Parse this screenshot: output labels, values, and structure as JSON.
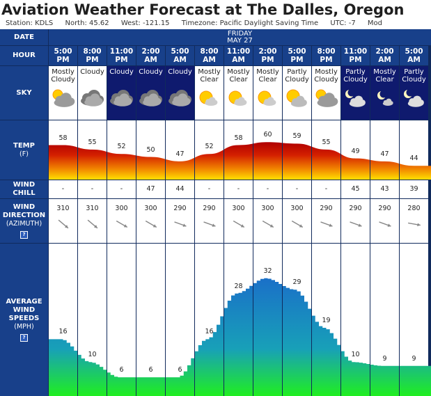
{
  "header": {
    "title": "Aviation Weather Forecast at The Dalles, Oregon",
    "station": "Station: KDLS",
    "north": "North: 45.62",
    "west": "West: -121.15",
    "timezone": "Timezone: Pacific Daylight Saving Time",
    "utc": "UTC: -7",
    "extra": "Mod"
  },
  "labels": {
    "date": "DATE",
    "hour": "HOUR",
    "sky": "SKY",
    "temp": "TEMP",
    "temp_unit": "(F)",
    "wind_chill_1": "WIND",
    "wind_chill_2": "CHILL",
    "wind_dir_1": "WIND",
    "wind_dir_2": "DIRECTION",
    "wind_dir_3": "(AZIMUTH)",
    "wind_speed_1": "AVERAGE",
    "wind_speed_2": "WIND",
    "wind_speed_3": "SPEEDS",
    "wind_speed_unit": "(MPH)",
    "help": "?"
  },
  "date_block": {
    "day": "FRIDAY",
    "date": "MAY 27"
  },
  "columns": [
    {
      "hour": "5:00",
      "ampm": "PM",
      "sky": "Mostly Cloudy",
      "icon": "mostly-cloudy-day-icon",
      "night": false,
      "temp": "58",
      "chill": "-",
      "dir": "310",
      "dir_deg": 310,
      "speed": "16",
      "speed_val": 16
    },
    {
      "hour": "8:00",
      "ampm": "PM",
      "sky": "Cloudy",
      "icon": "cloudy-icon",
      "night": false,
      "temp": "55",
      "chill": "-",
      "dir": "310",
      "dir_deg": 310,
      "speed": "10",
      "speed_val": 10
    },
    {
      "hour": "11:00",
      "ampm": "PM",
      "sky": "Cloudy",
      "icon": "cloudy-icon",
      "night": true,
      "temp": "52",
      "chill": "-",
      "dir": "300",
      "dir_deg": 300,
      "speed": "6",
      "speed_val": 6
    },
    {
      "hour": "2:00",
      "ampm": "AM",
      "sky": "Cloudy",
      "icon": "cloudy-icon",
      "night": true,
      "temp": "50",
      "chill": "47",
      "dir": "300",
      "dir_deg": 300,
      "speed": "6",
      "speed_val": 6
    },
    {
      "hour": "5:00",
      "ampm": "AM",
      "sky": "Cloudy",
      "icon": "cloudy-icon",
      "night": true,
      "temp": "47",
      "chill": "44",
      "dir": "290",
      "dir_deg": 290,
      "speed": "6",
      "speed_val": 6
    },
    {
      "hour": "8:00",
      "ampm": "AM",
      "sky": "Mostly Clear",
      "icon": "mostly-clear-day-icon",
      "night": false,
      "temp": "52",
      "chill": "-",
      "dir": "290",
      "dir_deg": 290,
      "speed": "16",
      "speed_val": 16
    },
    {
      "hour": "11:00",
      "ampm": "AM",
      "sky": "Mostly Clear",
      "icon": "mostly-clear-day-icon",
      "night": false,
      "temp": "58",
      "chill": "-",
      "dir": "300",
      "dir_deg": 300,
      "speed": "28",
      "speed_val": 28
    },
    {
      "hour": "2:00",
      "ampm": "PM",
      "sky": "Mostly Clear",
      "icon": "mostly-clear-day-icon",
      "night": false,
      "temp": "60",
      "chill": "-",
      "dir": "300",
      "dir_deg": 300,
      "speed": "32",
      "speed_val": 32
    },
    {
      "hour": "5:00",
      "ampm": "PM",
      "sky": "Partly Cloudy",
      "icon": "partly-cloudy-day-icon",
      "night": false,
      "temp": "59",
      "chill": "-",
      "dir": "300",
      "dir_deg": 300,
      "speed": "29",
      "speed_val": 29
    },
    {
      "hour": "8:00",
      "ampm": "PM",
      "sky": "Mostly Cloudy",
      "icon": "mostly-cloudy-day-icon",
      "night": false,
      "temp": "55",
      "chill": "-",
      "dir": "290",
      "dir_deg": 290,
      "speed": "19",
      "speed_val": 19
    },
    {
      "hour": "11:00",
      "ampm": "PM",
      "sky": "Partly Cloudy",
      "icon": "partly-cloudy-night-icon",
      "night": true,
      "temp": "49",
      "chill": "45",
      "dir": "290",
      "dir_deg": 290,
      "speed": "10",
      "speed_val": 10
    },
    {
      "hour": "2:00",
      "ampm": "AM",
      "sky": "Mostly Clear",
      "icon": "mostly-clear-night-icon",
      "night": true,
      "temp": "47",
      "chill": "43",
      "dir": "290",
      "dir_deg": 290,
      "speed": "9",
      "speed_val": 9
    },
    {
      "hour": "5:00",
      "ampm": "AM",
      "sky": "Partly Cloudy",
      "icon": "partly-cloudy-night-icon",
      "night": true,
      "temp": "44",
      "chill": "39",
      "dir": "280",
      "dir_deg": 280,
      "speed": "9",
      "speed_val": 9
    }
  ],
  "colors": {
    "header_blue": "#18408a",
    "night_blue": "#0f1a6e",
    "temp_top": "#c00000",
    "temp_bottom": "#ffd800",
    "wind_top": "#1f7fc0",
    "wind_bottom": "#22e030"
  }
}
